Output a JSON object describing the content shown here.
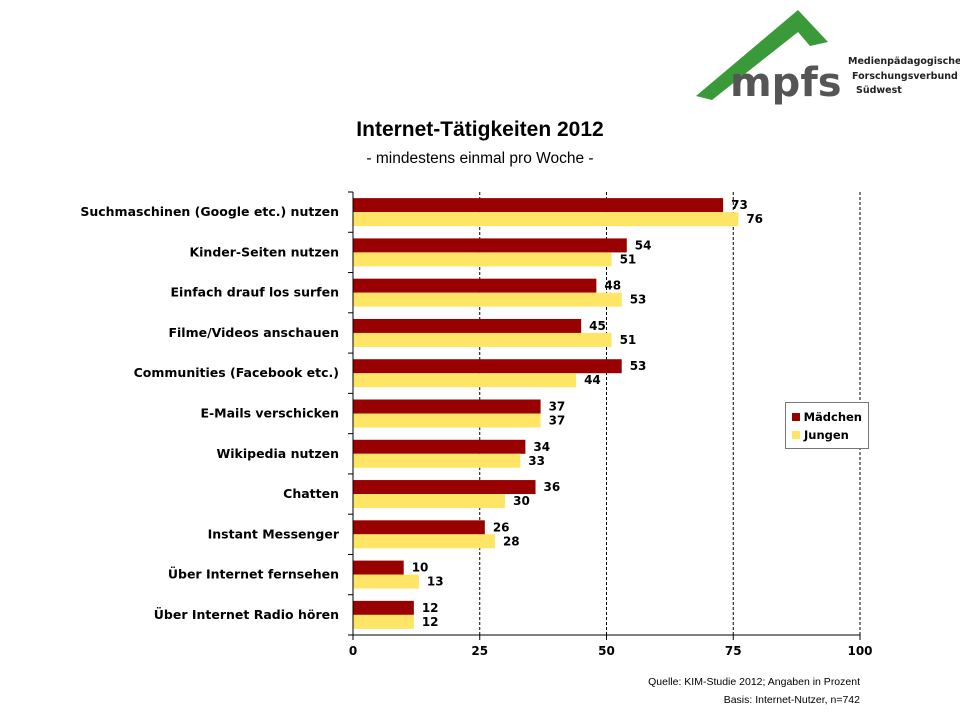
{
  "logo": {
    "text": "mpfs",
    "lines": [
      "Medienpädagogischer",
      "Forschungsverbund",
      "Südwest"
    ]
  },
  "chart_data": {
    "type": "bar",
    "orientation": "horizontal",
    "title": "Internet-Tätigkeiten 2012",
    "subtitle": "- mindestens einmal pro Woche -",
    "categories": [
      "Suchmaschinen (Google etc.) nutzen",
      "Kinder-Seiten nutzen",
      "Einfach drauf los surfen",
      "Filme/Videos anschauen",
      "Communities (Facebook etc.)",
      "E-Mails verschicken",
      "Wikipedia nutzen",
      "Chatten",
      "Instant Messenger",
      "Über Internet fernsehen",
      "Über Internet Radio hören"
    ],
    "series": [
      {
        "name": "Mädchen",
        "color": "#990000",
        "values": [
          73,
          54,
          48,
          45,
          53,
          37,
          34,
          36,
          26,
          10,
          12
        ]
      },
      {
        "name": "Jungen",
        "color": "#FFE566",
        "values": [
          76,
          51,
          53,
          51,
          44,
          37,
          33,
          30,
          28,
          13,
          12
        ]
      }
    ],
    "xlim": [
      0,
      100
    ],
    "xticks": [
      "0",
      "25",
      "50",
      "75",
      "100"
    ],
    "grid": "vertical dashed",
    "legend_position": "right"
  },
  "source": {
    "line1": "Quelle: KIM-Studie 2012; Angaben in Prozent",
    "line2": "Basis: Internet-Nutzer, n=742"
  }
}
